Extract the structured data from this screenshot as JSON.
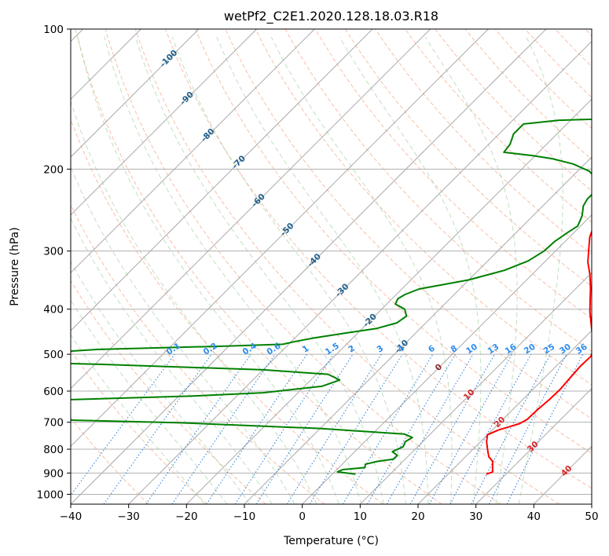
{
  "chart_data": {
    "type": "line",
    "title": "wetPf2_C2E1.2020.128.18.03.R18",
    "xlabel": "Temperature (°C)",
    "ylabel": "Pressure (hPa)",
    "xlim": [
      -40,
      50
    ],
    "ylim": [
      1050,
      100
    ],
    "y_scale": "log",
    "x_ticks": [
      -40,
      -30,
      -20,
      -10,
      0,
      10,
      20,
      30,
      40,
      50
    ],
    "y_ticks": [
      100,
      200,
      300,
      400,
      500,
      600,
      700,
      800,
      900,
      1000
    ],
    "grid": true,
    "isotherm_labels": [
      {
        "text": "-100",
        "t": -100,
        "p": 115
      },
      {
        "text": "-90",
        "t": -90,
        "p": 140
      },
      {
        "text": "-80",
        "t": -80,
        "p": 168
      },
      {
        "text": "-70",
        "t": -70,
        "p": 192
      },
      {
        "text": "-60",
        "t": -60,
        "p": 232
      },
      {
        "text": "-50",
        "t": -50,
        "p": 268
      },
      {
        "text": "-40",
        "t": -40,
        "p": 312
      },
      {
        "text": "-30",
        "t": -30,
        "p": 362
      },
      {
        "text": "-20",
        "t": -20,
        "p": 420
      },
      {
        "text": "-10",
        "t": -10,
        "p": 478
      },
      {
        "text": "0",
        "t": 0,
        "p": 530
      },
      {
        "text": "10",
        "t": 10,
        "p": 607
      },
      {
        "text": "20",
        "t": 20,
        "p": 695
      },
      {
        "text": "30",
        "t": 30,
        "p": 785
      },
      {
        "text": "40",
        "t": 40,
        "p": 885
      }
    ],
    "mixing_ratio_labels": [
      "0.1",
      "0.2",
      "0.4",
      "0.6",
      "1",
      "1.5",
      "2",
      "3",
      "4",
      "6",
      "8",
      "10",
      "13",
      "16",
      "20",
      "25",
      "30",
      "36"
    ],
    "mixing_ratio_label_pressure": 500,
    "series": [
      {
        "name": "",
        "color": "#ff0000",
        "points": [
          [
            26.6,
            905
          ],
          [
            27.3,
            895
          ],
          [
            26.5,
            875
          ],
          [
            25.5,
            850
          ],
          [
            24.0,
            830
          ],
          [
            22.5,
            800
          ],
          [
            21.0,
            770
          ],
          [
            20.0,
            745
          ],
          [
            21.0,
            728
          ],
          [
            22.5,
            715
          ],
          [
            23.6,
            705
          ],
          [
            24.2,
            690
          ],
          [
            24.3,
            660
          ],
          [
            24.6,
            625
          ],
          [
            24.7,
            595
          ],
          [
            24.4,
            560
          ],
          [
            24.2,
            530
          ],
          [
            24.3,
            505
          ],
          [
            23.7,
            492
          ],
          [
            21.5,
            462
          ],
          [
            19.0,
            433
          ],
          [
            16.5,
            406
          ],
          [
            14.5,
            383
          ],
          [
            12.5,
            361
          ],
          [
            10.0,
            337
          ],
          [
            7.5,
            317
          ],
          [
            5.5,
            298
          ],
          [
            3.5,
            280
          ],
          [
            2.2,
            264
          ],
          [
            1.2,
            250
          ],
          [
            0.0,
            233
          ],
          [
            -1.5,
            218
          ],
          [
            -1.7,
            207
          ],
          [
            -0.5,
            196
          ],
          [
            1.0,
            188
          ],
          [
            3.0,
            180
          ],
          [
            5.0,
            171
          ],
          [
            6.7,
            161
          ],
          [
            8.1,
            152
          ],
          [
            8.8,
            145
          ],
          [
            8.7,
            137
          ],
          [
            7.9,
            131
          ],
          [
            7.4,
            126
          ],
          [
            7.5,
            120
          ],
          [
            7.0,
            113
          ],
          [
            6.6,
            107
          ],
          [
            6.5,
            100
          ]
        ]
      },
      {
        "name": "",
        "color": "#008000",
        "points": [
          [
            4.0,
            905
          ],
          [
            0.5,
            895
          ],
          [
            1.0,
            885
          ],
          [
            4.5,
            876
          ],
          [
            4.0,
            862
          ],
          [
            5.5,
            850
          ],
          [
            8.0,
            840
          ],
          [
            8.0,
            825
          ],
          [
            6.5,
            810
          ],
          [
            7.5,
            790
          ],
          [
            7.0,
            770
          ],
          [
            7.5,
            755
          ],
          [
            5.5,
            742
          ],
          [
            -10.0,
            722
          ],
          [
            -35.0,
            702
          ],
          [
            -60.0,
            690
          ],
          [
            -80.0,
            683
          ],
          [
            -60.0,
            627
          ],
          [
            -38.0,
            615
          ],
          [
            -26.0,
            605
          ],
          [
            -17.0,
            586
          ],
          [
            -15.0,
            568
          ],
          [
            -18.0,
            552
          ],
          [
            -30.0,
            540
          ],
          [
            -60.0,
            525
          ],
          [
            -90.0,
            515
          ],
          [
            -62.0,
            488
          ],
          [
            -40.0,
            480
          ],
          [
            -31.0,
            476
          ],
          [
            -29.5,
            470
          ],
          [
            -27.0,
            462
          ],
          [
            -22.0,
            450
          ],
          [
            -17.5,
            440
          ],
          [
            -15.0,
            428
          ],
          [
            -14.5,
            414
          ],
          [
            -16.0,
            400
          ],
          [
            -18.5,
            390
          ],
          [
            -19.0,
            380
          ],
          [
            -18.5,
            372
          ],
          [
            -17.0,
            362
          ],
          [
            -10.0,
            346
          ],
          [
            -5.5,
            330
          ],
          [
            -3.0,
            315
          ],
          [
            -2.0,
            300
          ],
          [
            -1.8,
            286
          ],
          [
            -1.2,
            275
          ],
          [
            -0.5,
            265
          ],
          [
            -1.5,
            252
          ],
          [
            -3.0,
            240
          ],
          [
            -3.5,
            232
          ],
          [
            -3.5,
            222
          ],
          [
            -5.0,
            211
          ],
          [
            -8.0,
            202
          ],
          [
            -12.0,
            195
          ],
          [
            -16.5,
            190
          ],
          [
            -20.5,
            187
          ],
          [
            -26.0,
            184
          ],
          [
            -26.3,
            177
          ],
          [
            -27.5,
            168
          ],
          [
            -27.5,
            160
          ],
          [
            -22.0,
            157
          ],
          [
            -8.0,
            155
          ],
          [
            -5.0,
            150
          ],
          [
            -5.5,
            144
          ],
          [
            -6.5,
            139
          ],
          [
            -7.0,
            133
          ],
          [
            -7.5,
            127
          ],
          [
            -6.5,
            120
          ],
          [
            -5.5,
            114
          ],
          [
            -5.0,
            108
          ],
          [
            -3.5,
            103
          ],
          [
            -2.5,
            100
          ]
        ]
      }
    ]
  }
}
